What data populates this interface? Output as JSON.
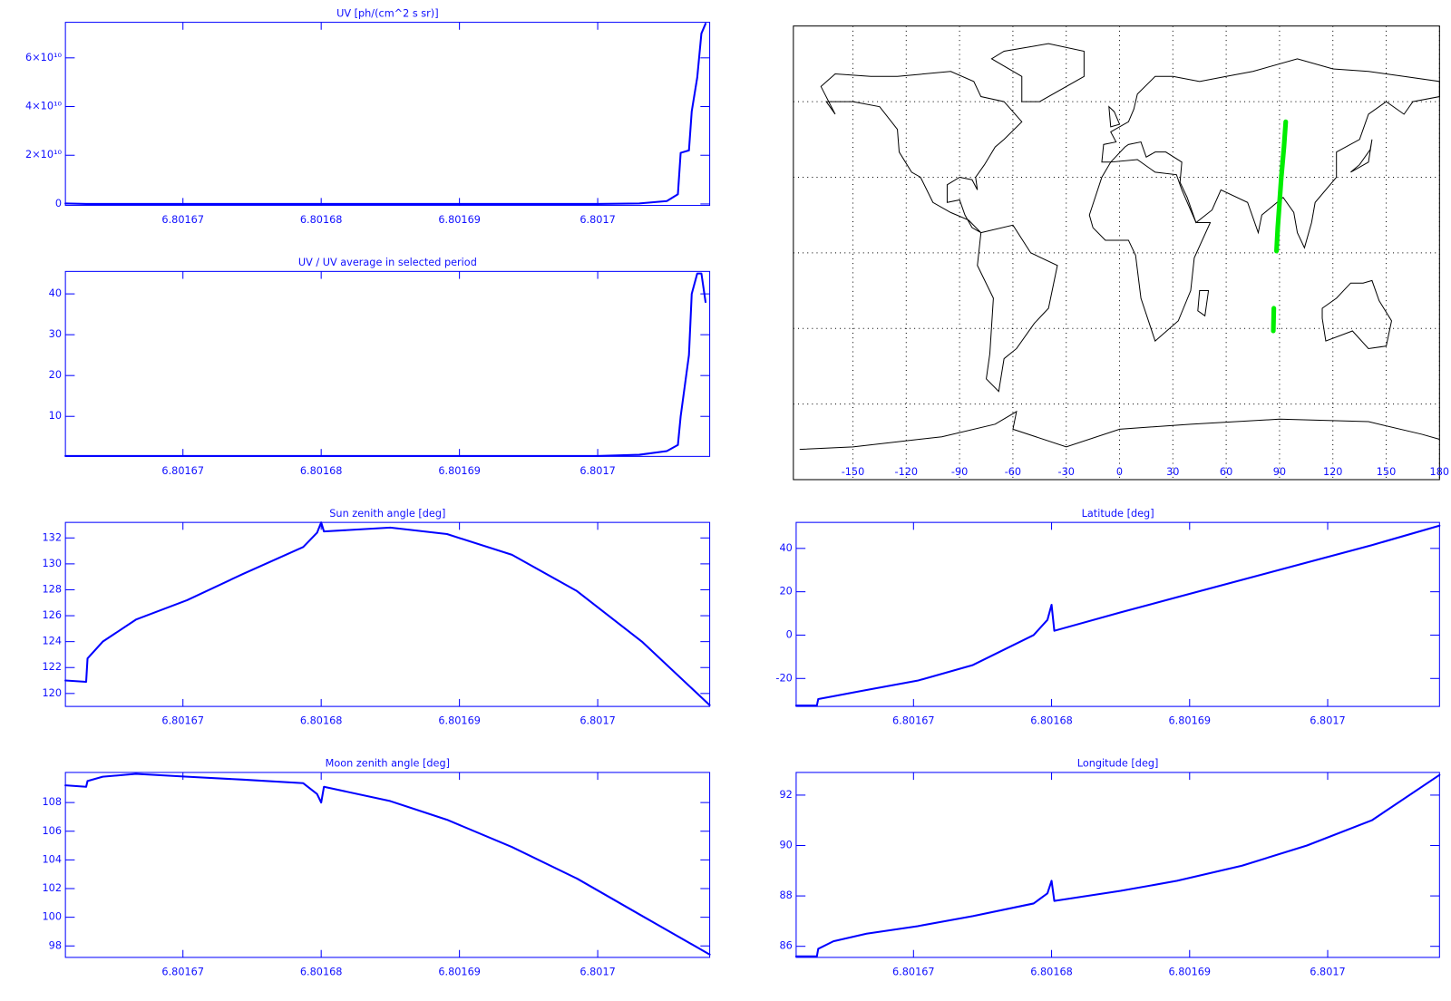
{
  "chart_data": [
    {
      "type": "line",
      "title": "UV [ph/(cm^2 s sr)]",
      "color": "#0000ff",
      "x": [
        6.8016615,
        6.801663,
        6.80168,
        6.8017,
        6.801703,
        6.801705,
        6.8017058,
        6.801706,
        6.8017066,
        6.8017068,
        6.8017072,
        6.8017075,
        6.8017078
      ],
      "values": [
        200000000,
        0,
        0,
        0,
        200000000,
        1200000000,
        4000000000,
        21000000000,
        22000000000,
        38000000000,
        52000000000,
        70000000000,
        74000000000
      ],
      "xlim": [
        6.8016615,
        6.8017081
      ],
      "ylim": [
        -600000000,
        74600000000
      ],
      "xticks": [
        6.80167,
        6.80168,
        6.80169,
        6.8017
      ],
      "yticks": [
        0,
        {
          "value": 20000000000,
          "label": "2×10¹⁰"
        },
        {
          "value": 40000000000,
          "label": "4×10¹⁰"
        },
        {
          "value": 60000000000,
          "label": "6×10¹⁰"
        }
      ]
    },
    {
      "type": "line",
      "title": "UV / UV average in selected period",
      "color": "#0000ff",
      "x": [
        6.8016615,
        6.801663,
        6.80168,
        6.8017,
        6.801703,
        6.801705,
        6.8017058,
        6.801706,
        6.8017066,
        6.8017068,
        6.8017072,
        6.8017075,
        6.8017078
      ],
      "values": [
        0.3,
        0.3,
        0.3,
        0.3,
        0.6,
        1.5,
        3,
        10,
        25,
        40,
        45,
        45,
        38
      ],
      "xlim": [
        6.8016615,
        6.8017081
      ],
      "ylim": [
        0.2,
        45.5
      ],
      "xticks": [
        6.80167,
        6.80168,
        6.80169,
        6.8017
      ],
      "yticks": [
        10,
        20,
        30,
        40
      ]
    },
    {
      "type": "map",
      "color": "#00ee00",
      "x": [
        86.5,
        86.8,
        null,
        88.3,
        89,
        90,
        91,
        92.5,
        93.5
      ],
      "values": [
        -31,
        -22,
        null,
        0.7,
        10,
        20,
        30,
        42,
        52
      ],
      "xlim": [
        -183.5,
        180
      ],
      "ylim": [
        -90,
        90
      ],
      "xticks": [
        -150,
        -120,
        -90,
        -60,
        -30,
        0,
        30,
        60,
        90,
        120,
        150,
        180
      ],
      "yticks": [
        -60,
        -30,
        0,
        30,
        60
      ],
      "grid": true
    },
    {
      "type": "line",
      "title": "Sun zenith angle [deg]",
      "color": "#0000ff",
      "x": [
        6.8016615,
        6.801663,
        6.8016631,
        6.8016642,
        6.8016666,
        6.8016703,
        6.8016743,
        6.8016787,
        6.8016797,
        6.80168,
        6.8016802,
        6.801685,
        6.8016891,
        6.8016938,
        6.8016985,
        6.8017032,
        6.8017081
      ],
      "values": [
        121.0,
        120.9,
        122.7,
        124.0,
        125.7,
        127.2,
        129.2,
        131.3,
        132.4,
        133.2,
        132.5,
        132.8,
        132.3,
        130.7,
        127.9,
        124.0,
        119.1
      ],
      "xlim": [
        6.8016615,
        6.8017081
      ],
      "ylim": [
        119,
        133.2
      ],
      "xticks": [
        6.80167,
        6.80168,
        6.80169,
        6.8017
      ],
      "yticks": [
        120,
        122,
        124,
        126,
        128,
        130,
        132
      ]
    },
    {
      "type": "line",
      "title": "Latitude [deg]",
      "color": "#0000ff",
      "x": [
        6.8016615,
        6.801663,
        6.8016631,
        6.8016642,
        6.8016666,
        6.8016703,
        6.8016743,
        6.8016787,
        6.8016797,
        6.80168,
        6.8016802,
        6.801685,
        6.8016891,
        6.8016938,
        6.8016985,
        6.8017032,
        6.8017081
      ],
      "values": [
        -32.5,
        -32.5,
        -29.5,
        -28.2,
        -25.3,
        -21,
        -13.8,
        0,
        7,
        14,
        2,
        10.5,
        17.5,
        25.5,
        33.5,
        41.5,
        50.5
      ],
      "xlim": [
        6.8016615,
        6.8017081
      ],
      "ylim": [
        -32.9,
        52
      ],
      "xticks": [
        6.80167,
        6.80168,
        6.80169,
        6.8017
      ],
      "yticks": [
        -20,
        0,
        20,
        40
      ]
    },
    {
      "type": "line",
      "title": "Moon zenith angle [deg]",
      "color": "#0000ff",
      "x": [
        6.8016615,
        6.801663,
        6.8016631,
        6.8016642,
        6.8016666,
        6.8016703,
        6.8016743,
        6.8016787,
        6.8016797,
        6.80168,
        6.8016802,
        6.801685,
        6.8016891,
        6.8016938,
        6.8016985,
        6.8017032,
        6.8017081
      ],
      "values": [
        109.2,
        109.1,
        109.5,
        109.8,
        110.0,
        109.8,
        109.6,
        109.35,
        108.6,
        108.0,
        109.1,
        108.1,
        106.8,
        104.9,
        102.7,
        100.1,
        97.4
      ],
      "xlim": [
        6.8016615,
        6.8017081
      ],
      "ylim": [
        97.2,
        110.1
      ],
      "xticks": [
        6.80167,
        6.80168,
        6.80169,
        6.8017
      ],
      "yticks": [
        98,
        100,
        102,
        104,
        106,
        108
      ]
    },
    {
      "type": "line",
      "title": "Longitude [deg]",
      "color": "#0000ff",
      "x": [
        6.8016615,
        6.801663,
        6.8016631,
        6.8016642,
        6.8016666,
        6.8016703,
        6.8016743,
        6.8016787,
        6.8016797,
        6.80168,
        6.8016802,
        6.801685,
        6.8016891,
        6.8016938,
        6.8016985,
        6.8017032,
        6.8017081
      ],
      "values": [
        85.6,
        85.6,
        85.9,
        86.2,
        86.5,
        86.8,
        87.2,
        87.7,
        88.1,
        88.6,
        87.8,
        88.2,
        88.6,
        89.2,
        90.0,
        91.0,
        92.8
      ],
      "xlim": [
        6.8016615,
        6.8017081
      ],
      "ylim": [
        85.56,
        92.9
      ],
      "xticks": [
        6.80167,
        6.80168,
        6.80169,
        6.8017
      ],
      "yticks": [
        86,
        88,
        90,
        92
      ]
    }
  ]
}
